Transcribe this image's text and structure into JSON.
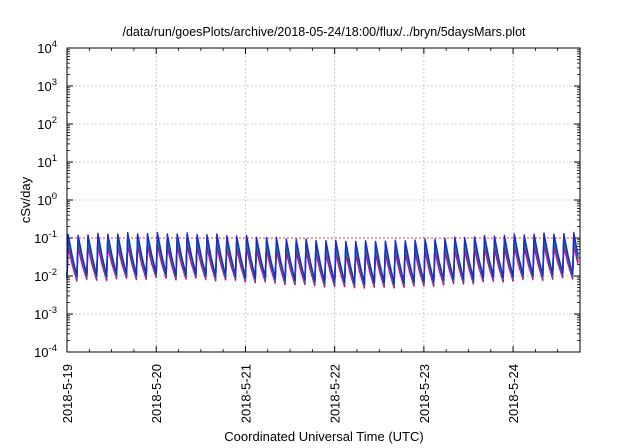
{
  "chart_data": {
    "type": "line",
    "title": "/data/run/goesPlots/archive/2018-05-24/18:00/flux/../bryn/5daysMars.plot",
    "xlabel": "Coordinated Universal Time (UTC)",
    "ylabel": "cSv/day",
    "yscale": "log",
    "ylim": [
      0.0001,
      10000
    ],
    "y_ticks": [
      {
        "base": "10",
        "exp": "-4",
        "value": 0.0001
      },
      {
        "base": "10",
        "exp": "-3",
        "value": 0.001
      },
      {
        "base": "10",
        "exp": "-2",
        "value": 0.01
      },
      {
        "base": "10",
        "exp": "-1",
        "value": 0.1
      },
      {
        "base": "10",
        "exp": "0",
        "value": 1
      },
      {
        "base": "10",
        "exp": "1",
        "value": 10
      },
      {
        "base": "10",
        "exp": "2",
        "value": 100
      },
      {
        "base": "10",
        "exp": "3",
        "value": 1000
      },
      {
        "base": "10",
        "exp": "4",
        "value": 10000
      }
    ],
    "x_ticks": [
      "2018-5-19",
      "2018-5-20",
      "2018-5-21",
      "2018-5-22",
      "2018-5-23",
      "2018-5-24"
    ],
    "xlim": [
      "2018-05-19 00:00",
      "2018-05-24 18:00"
    ],
    "grid": true,
    "legend": "none",
    "pattern": {
      "cycles_per_day": 9,
      "peak_range": [
        0.055,
        0.14
      ],
      "trough_range": [
        0.0045,
        0.012
      ]
    },
    "series": [
      {
        "color": "#ff00ff",
        "level": 0.45
      },
      {
        "color": "#a0004f",
        "level": 0.55
      },
      {
        "color": "#e8005a",
        "level": 0.62
      },
      {
        "color": "#ff8c00",
        "level": 0.8
      },
      {
        "color": "#00b0b0",
        "level": 0.72
      },
      {
        "color": "#00a000",
        "level": 0.78
      },
      {
        "color": "#0050ff",
        "level": 0.92
      },
      {
        "color": "#1a2bd0",
        "level": 1.0
      }
    ],
    "colors": {
      "grid": "#b0b0b0",
      "frame": "#000000",
      "reference_line": "#ff0000"
    }
  }
}
